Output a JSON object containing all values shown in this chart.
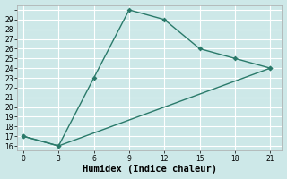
{
  "xlabel": "Humidex (Indice chaleur)",
  "line1_x": [
    0,
    3,
    6,
    9,
    12,
    15,
    18,
    21
  ],
  "line1_y": [
    17,
    16,
    23,
    30,
    29,
    26,
    25,
    24
  ],
  "line2_x": [
    0,
    3,
    21
  ],
  "line2_y": [
    17,
    16,
    24
  ],
  "line_color": "#2a7a6a",
  "bg_color": "#cde8e8",
  "grid_color": "#ffffff",
  "ylim": [
    15.5,
    30.5
  ],
  "xlim": [
    -0.5,
    22
  ],
  "yticks": [
    16,
    17,
    18,
    19,
    20,
    21,
    22,
    23,
    24,
    25,
    26,
    27,
    28,
    29,
    30
  ],
  "ytick_labels": [
    "16",
    "17",
    "18",
    "19",
    "20",
    "21",
    "22",
    "23",
    "24",
    "25",
    "26",
    "27",
    "28",
    "29",
    ""
  ],
  "xticks": [
    0,
    3,
    6,
    9,
    12,
    15,
    18,
    21
  ],
  "tick_fontsize": 5.5,
  "xlabel_fontsize": 7.5,
  "marker_size": 3,
  "linewidth": 1.0
}
